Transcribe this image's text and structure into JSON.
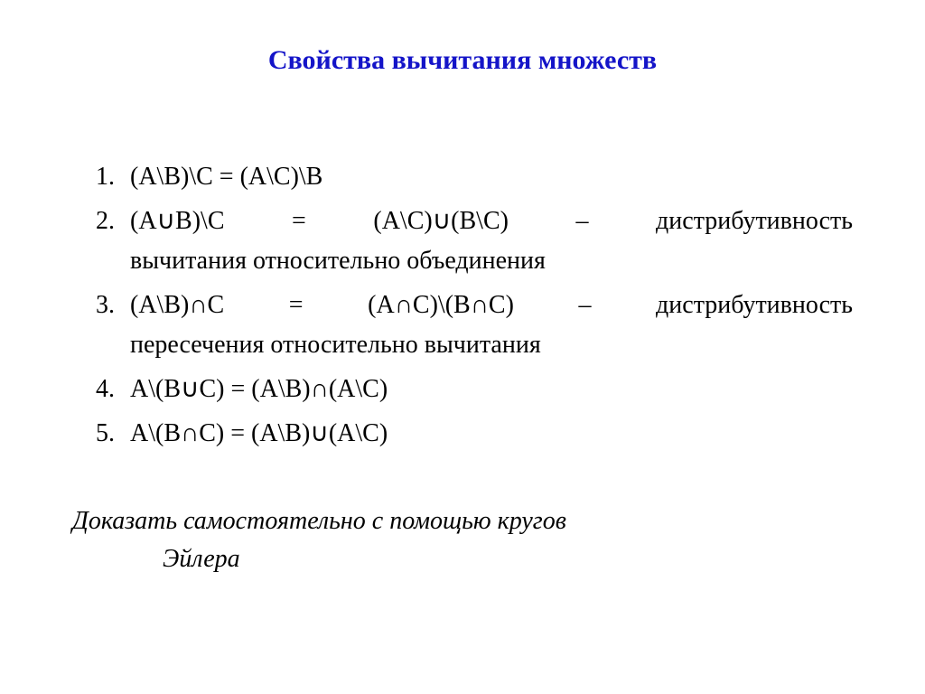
{
  "title": {
    "text": "Свойства вычитания множеств",
    "color": "#1414c8",
    "font_size_pt": 22,
    "font_weight": "bold",
    "align": "center"
  },
  "body": {
    "font_size_pt": 21,
    "color": "#000000",
    "font_family": "Times New Roman"
  },
  "properties": [
    {
      "formula": "(A\\B)\\C = (A\\C)\\B",
      "description": ""
    },
    {
      "formula_line": "(A∪B)\\C = (A\\C)∪(B\\C) – дистрибутивность",
      "description": "вычитания относительно объединения"
    },
    {
      "formula_line": "(A\\B)∩C = (A∩C)\\(B∩C) – дистрибутивность",
      "description": "пересечения относительно вычитания"
    },
    {
      "formula": "A\\(B∪C) = (A\\B)∩(A\\C)",
      "description": ""
    },
    {
      "formula": "A\\(B∩C) = (A\\B)∪(A\\C)",
      "description": ""
    }
  ],
  "footnote": {
    "line1": "Доказать самостоятельно с помощью кругов",
    "line2": "Эйлера"
  }
}
